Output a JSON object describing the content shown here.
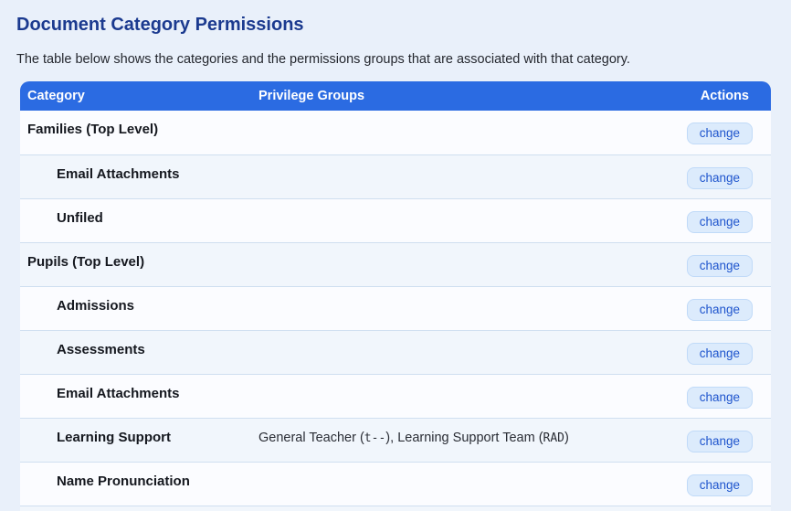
{
  "page": {
    "title": "Document Category Permissions",
    "subtitle": "The table below shows the categories and the permissions groups that are associated with that category."
  },
  "table": {
    "columns": [
      "Category",
      "Privilege Groups",
      "Actions"
    ],
    "rows": [
      {
        "category": "Families (Top Level)",
        "indented": false,
        "privilege_groups": [],
        "action": "change"
      },
      {
        "category": "Email Attachments",
        "indented": true,
        "privilege_groups": [],
        "action": "change"
      },
      {
        "category": "Unfiled",
        "indented": true,
        "privilege_groups": [],
        "action": "change"
      },
      {
        "category": "Pupils (Top Level)",
        "indented": false,
        "privilege_groups": [],
        "action": "change"
      },
      {
        "category": "Admissions",
        "indented": true,
        "privilege_groups": [],
        "action": "change"
      },
      {
        "category": "Assessments",
        "indented": true,
        "privilege_groups": [],
        "action": "change"
      },
      {
        "category": "Email Attachments",
        "indented": true,
        "privilege_groups": [],
        "action": "change"
      },
      {
        "category": "Learning Support",
        "indented": true,
        "privilege_groups": [
          {
            "name": "General Teacher",
            "flags": "t--"
          },
          {
            "name": "Learning Support Team",
            "flags": "RAD"
          }
        ],
        "action": "change"
      },
      {
        "category": "Name Pronunciation",
        "indented": true,
        "privilege_groups": [],
        "action": "change"
      },
      {
        "category": "",
        "indented": false,
        "privilege_groups": [],
        "action": "",
        "partial": true
      }
    ]
  },
  "colors": {
    "page_background": "#e9f0fa",
    "header_background": "#2b6be2",
    "header_text": "#ffffff",
    "title_text": "#1b3a8f",
    "body_text": "#24272e",
    "row_even": "#fbfcff",
    "row_odd": "#f1f6fc",
    "divider": "#cfdff0",
    "button_background": "#dcebfc",
    "button_border": "#c0daf8",
    "button_text": "#1f55cd"
  }
}
